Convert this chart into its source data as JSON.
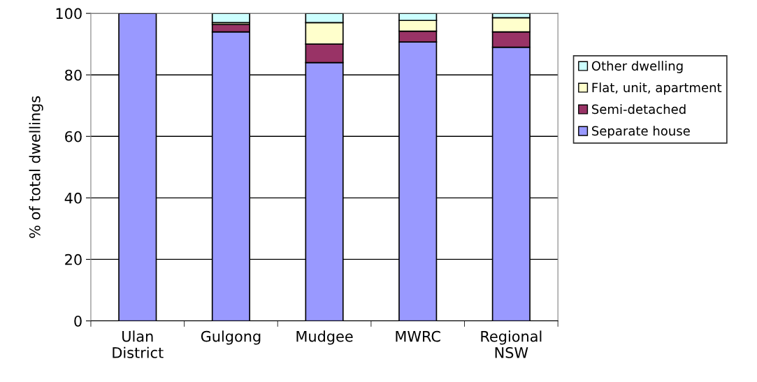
{
  "chart_data": {
    "type": "bar",
    "stacked": true,
    "ylabel": "% of total dwellings",
    "categories": [
      "Ulan District",
      "Gulgong",
      "Mudgee",
      "MWRC",
      "Regional NSW"
    ],
    "series": [
      {
        "name": "Separate house",
        "color": "#9999ff",
        "values": [
          100,
          94,
          84,
          90.7,
          89
        ]
      },
      {
        "name": "Semi-detached",
        "color": "#993366",
        "values": [
          null,
          2.4,
          6,
          3.5,
          5
        ]
      },
      {
        "name": "Flat, unit, apartment",
        "color": "#ffffcc",
        "values": [
          null,
          0.6,
          7,
          3.5,
          4.6
        ]
      },
      {
        "name": "Other dwelling",
        "color": "#ccffff",
        "values": [
          null,
          3,
          3,
          2.3,
          1.4
        ]
      }
    ],
    "ylim": [
      0,
      100
    ],
    "yticks": [
      0,
      20,
      40,
      60,
      80,
      100
    ],
    "grid": "y",
    "legend": "right"
  }
}
